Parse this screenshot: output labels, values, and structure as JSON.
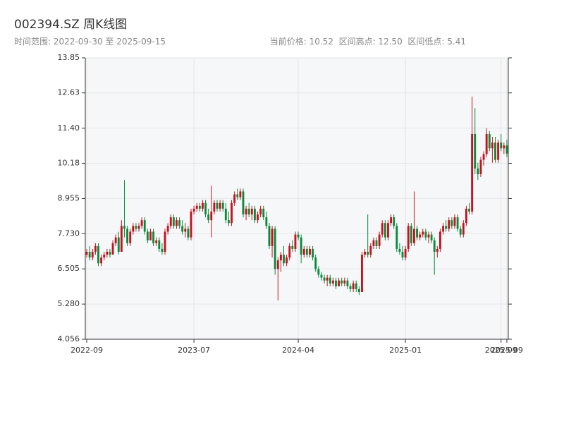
{
  "chart_data": {
    "type": "candlestick",
    "title": "002394.SZ 周K线图",
    "subtitle": "时间范围: 2022-09-30 至 2025-09-15",
    "info": "当前价格: 10.52  区间高点: 12.50  区间低点: 5.41",
    "up_color": "#c8101e",
    "down_color": "#0a8a3a",
    "grid": true,
    "ylim": [
      4.056,
      13.85
    ],
    "yticks": [
      4.056,
      {
        "value": 5.28,
        "label": "5.280"
      },
      6.505,
      {
        "value": 7.73,
        "label": "7.730"
      },
      8.955,
      10.18,
      {
        "value": 11.4,
        "label": "11.40"
      },
      12.63,
      13.85
    ],
    "xticks": [
      {
        "value": 0,
        "label": "2022-09"
      },
      {
        "value": 37,
        "label": "2023-07"
      },
      {
        "value": 73,
        "label": "2024-04"
      },
      {
        "value": 110,
        "label": "2025-01"
      },
      {
        "value": 143,
        "label": "2025-09"
      },
      {
        "value": 145,
        "label": "2025-09"
      }
    ],
    "ohlc": [
      [
        7.0,
        7.2,
        6.9,
        7.1
      ],
      [
        7.1,
        7.3,
        6.8,
        6.9
      ],
      [
        6.9,
        7.2,
        6.8,
        7.1
      ],
      [
        7.1,
        7.4,
        7.0,
        7.3
      ],
      [
        7.3,
        7.4,
        6.6,
        6.7
      ],
      [
        6.7,
        7.0,
        6.6,
        6.9
      ],
      [
        6.9,
        7.1,
        6.8,
        7.0
      ],
      [
        7.0,
        7.2,
        6.9,
        7.1
      ],
      [
        7.1,
        7.2,
        6.9,
        7.0
      ],
      [
        7.0,
        7.5,
        7.0,
        7.4
      ],
      [
        7.4,
        7.7,
        7.3,
        7.6
      ],
      [
        7.6,
        7.8,
        7.0,
        7.1
      ],
      [
        7.1,
        8.2,
        7.1,
        8.0
      ],
      [
        8.0,
        9.6,
        7.6,
        7.9
      ],
      [
        7.9,
        8.0,
        7.3,
        7.4
      ],
      [
        7.4,
        7.9,
        7.3,
        7.8
      ],
      [
        7.8,
        8.1,
        7.7,
        8.0
      ],
      [
        8.0,
        8.1,
        7.8,
        7.9
      ],
      [
        7.9,
        8.1,
        7.8,
        8.0
      ],
      [
        8.0,
        8.3,
        7.9,
        8.2
      ],
      [
        8.2,
        8.3,
        7.7,
        7.8
      ],
      [
        7.8,
        7.9,
        7.4,
        7.5
      ],
      [
        7.5,
        7.9,
        7.5,
        7.8
      ],
      [
        7.8,
        7.9,
        7.3,
        7.4
      ],
      [
        7.4,
        7.6,
        7.3,
        7.5
      ],
      [
        7.5,
        7.6,
        7.1,
        7.2
      ],
      [
        7.2,
        7.4,
        7.0,
        7.1
      ],
      [
        7.1,
        7.9,
        7.0,
        7.8
      ],
      [
        7.8,
        8.1,
        7.7,
        8.0
      ],
      [
        8.0,
        8.4,
        7.9,
        8.3
      ],
      [
        8.3,
        8.4,
        7.9,
        8.0
      ],
      [
        8.0,
        8.3,
        7.9,
        8.2
      ],
      [
        8.2,
        8.3,
        7.9,
        8.0
      ],
      [
        8.0,
        8.2,
        7.7,
        7.8
      ],
      [
        7.8,
        8.1,
        7.6,
        7.9
      ],
      [
        7.9,
        8.0,
        7.5,
        7.6
      ],
      [
        7.6,
        8.6,
        7.5,
        8.5
      ],
      [
        8.5,
        8.7,
        8.4,
        8.6
      ],
      [
        8.6,
        8.8,
        8.5,
        8.7
      ],
      [
        8.7,
        8.8,
        8.5,
        8.6
      ],
      [
        8.6,
        8.9,
        8.5,
        8.8
      ],
      [
        8.8,
        8.9,
        8.3,
        8.4
      ],
      [
        8.4,
        8.6,
        8.1,
        8.2
      ],
      [
        8.2,
        9.4,
        7.6,
        8.5
      ],
      [
        8.5,
        8.9,
        8.4,
        8.8
      ],
      [
        8.8,
        8.9,
        8.5,
        8.6
      ],
      [
        8.6,
        8.9,
        8.5,
        8.8
      ],
      [
        8.8,
        8.9,
        8.5,
        8.6
      ],
      [
        8.6,
        8.8,
        8.1,
        8.2
      ],
      [
        8.2,
        8.5,
        8.0,
        8.1
      ],
      [
        8.1,
        8.9,
        8.0,
        8.8
      ],
      [
        8.8,
        9.2,
        8.7,
        9.1
      ],
      [
        9.1,
        9.3,
        8.9,
        9.0
      ],
      [
        9.0,
        9.3,
        8.9,
        9.2
      ],
      [
        9.2,
        9.3,
        8.3,
        8.4
      ],
      [
        8.4,
        8.7,
        8.2,
        8.6
      ],
      [
        8.6,
        8.8,
        8.3,
        8.4
      ],
      [
        8.4,
        8.7,
        8.2,
        8.6
      ],
      [
        8.6,
        8.7,
        8.1,
        8.2
      ],
      [
        8.2,
        8.5,
        8.1,
        8.4
      ],
      [
        8.4,
        8.7,
        8.3,
        8.6
      ],
      [
        8.6,
        8.7,
        8.2,
        8.3
      ],
      [
        8.3,
        8.5,
        7.9,
        8.0
      ],
      [
        8.0,
        8.1,
        7.2,
        7.3
      ],
      [
        7.3,
        8.0,
        6.9,
        7.9
      ],
      [
        7.9,
        8.0,
        6.3,
        6.5
      ],
      [
        6.5,
        6.9,
        5.41,
        6.8
      ],
      [
        6.8,
        7.1,
        6.4,
        7.0
      ],
      [
        7.0,
        7.3,
        6.6,
        6.7
      ],
      [
        6.7,
        7.0,
        6.6,
        6.9
      ],
      [
        6.9,
        7.4,
        6.8,
        7.3
      ],
      [
        7.3,
        7.5,
        7.1,
        7.2
      ],
      [
        7.2,
        7.8,
        7.1,
        7.7
      ],
      [
        7.7,
        7.8,
        7.5,
        7.6
      ],
      [
        7.6,
        7.7,
        6.7,
        7.0
      ],
      [
        7.0,
        7.3,
        6.9,
        7.2
      ],
      [
        7.2,
        7.3,
        6.9,
        7.0
      ],
      [
        7.0,
        7.3,
        6.9,
        7.2
      ],
      [
        7.2,
        7.3,
        6.8,
        6.9
      ],
      [
        6.9,
        7.0,
        6.4,
        6.5
      ],
      [
        6.5,
        6.6,
        6.2,
        6.3
      ],
      [
        6.3,
        6.4,
        6.1,
        6.2
      ],
      [
        6.2,
        6.3,
        6.0,
        6.1
      ],
      [
        6.1,
        6.3,
        5.9,
        6.2
      ],
      [
        6.2,
        6.3,
        5.9,
        6.0
      ],
      [
        6.0,
        6.2,
        5.9,
        6.1
      ],
      [
        6.1,
        6.2,
        5.8,
        5.9
      ],
      [
        5.9,
        6.2,
        5.9,
        6.1
      ],
      [
        6.1,
        6.2,
        5.9,
        6.0
      ],
      [
        6.0,
        6.2,
        5.9,
        6.1
      ],
      [
        6.1,
        6.2,
        5.8,
        5.9
      ],
      [
        5.9,
        6.0,
        5.7,
        5.8
      ],
      [
        5.8,
        6.1,
        5.7,
        6.0
      ],
      [
        6.0,
        6.1,
        5.7,
        5.8
      ],
      [
        5.8,
        5.9,
        5.6,
        5.7
      ],
      [
        5.7,
        7.1,
        5.7,
        7.0
      ],
      [
        7.0,
        7.2,
        6.9,
        7.1
      ],
      [
        7.1,
        8.4,
        6.9,
        7.0
      ],
      [
        7.0,
        7.4,
        6.9,
        7.3
      ],
      [
        7.3,
        7.6,
        7.2,
        7.5
      ],
      [
        7.5,
        7.6,
        7.2,
        7.3
      ],
      [
        7.3,
        7.8,
        7.2,
        7.7
      ],
      [
        7.7,
        8.2,
        7.6,
        8.1
      ],
      [
        8.1,
        8.2,
        7.5,
        7.6
      ],
      [
        7.6,
        8.2,
        7.5,
        8.1
      ],
      [
        8.1,
        8.4,
        8.0,
        8.3
      ],
      [
        8.3,
        8.4,
        7.9,
        8.0
      ],
      [
        8.0,
        8.1,
        7.1,
        7.2
      ],
      [
        7.2,
        7.4,
        7.0,
        7.1
      ],
      [
        7.1,
        7.3,
        6.8,
        6.9
      ],
      [
        6.9,
        7.3,
        6.8,
        7.2
      ],
      [
        7.2,
        8.1,
        7.1,
        8.0
      ],
      [
        8.0,
        8.1,
        7.3,
        7.4
      ],
      [
        7.4,
        9.2,
        7.3,
        7.9
      ],
      [
        7.9,
        8.0,
        7.5,
        7.6
      ],
      [
        7.6,
        7.8,
        7.5,
        7.7
      ],
      [
        7.7,
        7.9,
        7.6,
        7.8
      ],
      [
        7.8,
        7.9,
        7.5,
        7.6
      ],
      [
        7.6,
        7.8,
        7.4,
        7.7
      ],
      [
        7.7,
        7.8,
        7.4,
        7.5
      ],
      [
        7.5,
        7.6,
        6.3,
        7.1
      ],
      [
        7.1,
        7.3,
        6.9,
        7.2
      ],
      [
        7.2,
        7.9,
        7.1,
        7.8
      ],
      [
        7.8,
        8.1,
        7.7,
        8.0
      ],
      [
        8.0,
        8.2,
        7.8,
        7.9
      ],
      [
        7.9,
        8.3,
        7.8,
        8.2
      ],
      [
        8.2,
        8.3,
        7.9,
        8.0
      ],
      [
        8.0,
        8.4,
        7.9,
        8.3
      ],
      [
        8.3,
        8.4,
        7.8,
        7.9
      ],
      [
        7.9,
        8.0,
        7.6,
        7.7
      ],
      [
        7.7,
        8.2,
        7.6,
        8.1
      ],
      [
        8.1,
        8.7,
        8.0,
        8.6
      ],
      [
        8.6,
        8.8,
        8.4,
        8.5
      ],
      [
        8.5,
        12.5,
        8.4,
        11.2
      ],
      [
        11.2,
        12.1,
        9.8,
        10.0
      ],
      [
        10.0,
        10.2,
        9.6,
        9.8
      ],
      [
        9.8,
        10.4,
        9.7,
        10.3
      ],
      [
        10.3,
        10.6,
        10.1,
        10.5
      ],
      [
        10.5,
        11.4,
        10.4,
        11.2
      ],
      [
        11.2,
        11.3,
        10.6,
        10.7
      ],
      [
        10.7,
        11.1,
        10.2,
        10.9
      ],
      [
        10.9,
        11.1,
        10.2,
        10.3
      ],
      [
        10.3,
        11.0,
        10.2,
        10.9
      ],
      [
        10.9,
        11.2,
        10.6,
        10.7
      ],
      [
        10.7,
        10.9,
        10.5,
        10.8
      ],
      [
        10.8,
        11.0,
        10.4,
        10.52
      ]
    ]
  }
}
